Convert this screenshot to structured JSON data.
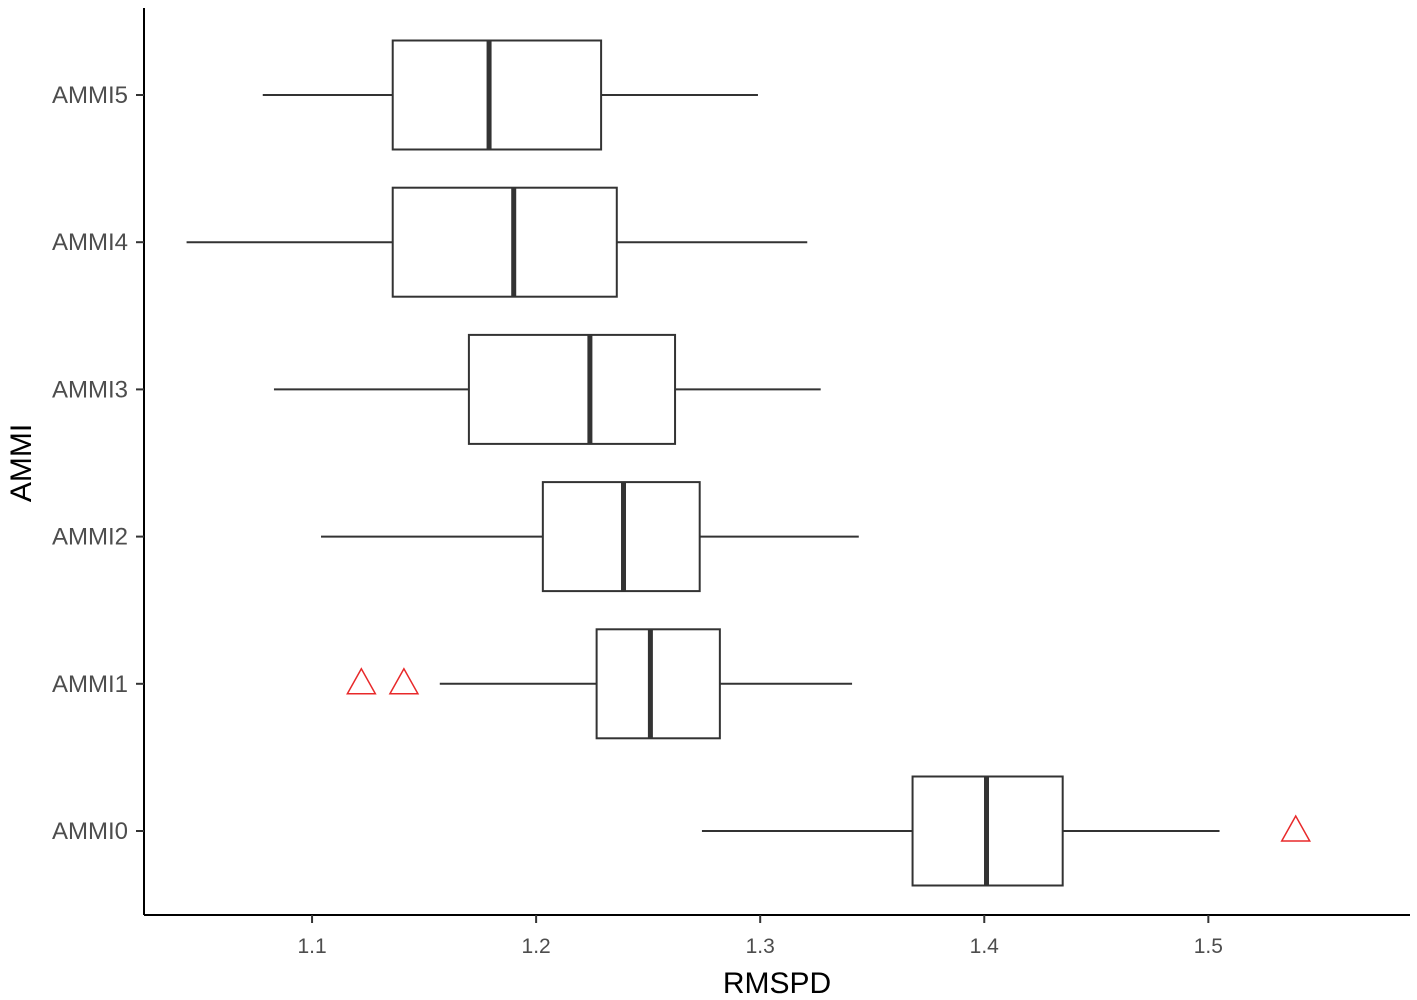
{
  "chart_data": {
    "type": "boxplot",
    "orientation": "horizontal",
    "title": "",
    "xlabel": "RMSPD",
    "ylabel": "AMMI",
    "xlim": [
      1.025,
      1.59
    ],
    "x_ticks": [
      1.1,
      1.2,
      1.3,
      1.4,
      1.5
    ],
    "x_tick_labels": [
      "1.1",
      "1.2",
      "1.3",
      "1.4",
      "1.5"
    ],
    "grid": false,
    "legend": "none",
    "outlier_color": "#e8292a",
    "outlier_shape": "open-triangle",
    "categories": [
      "AMMI5",
      "AMMI4",
      "AMMI3",
      "AMMI2",
      "AMMI1",
      "AMMI0"
    ],
    "boxes": [
      {
        "category": "AMMI5",
        "whisker_low": 1.078,
        "q1": 1.136,
        "median": 1.179,
        "q3": 1.229,
        "whisker_high": 1.299,
        "outliers": []
      },
      {
        "category": "AMMI4",
        "whisker_low": 1.044,
        "q1": 1.136,
        "median": 1.19,
        "q3": 1.236,
        "whisker_high": 1.321,
        "outliers": []
      },
      {
        "category": "AMMI3",
        "whisker_low": 1.083,
        "q1": 1.17,
        "median": 1.224,
        "q3": 1.262,
        "whisker_high": 1.327,
        "outliers": []
      },
      {
        "category": "AMMI2",
        "whisker_low": 1.104,
        "q1": 1.203,
        "median": 1.239,
        "q3": 1.273,
        "whisker_high": 1.344,
        "outliers": []
      },
      {
        "category": "AMMI1",
        "whisker_low": 1.157,
        "q1": 1.227,
        "median": 1.251,
        "q3": 1.282,
        "whisker_high": 1.341,
        "outliers": [
          1.122,
          1.141
        ]
      },
      {
        "category": "AMMI0",
        "whisker_low": 1.274,
        "q1": 1.368,
        "median": 1.401,
        "q3": 1.435,
        "whisker_high": 1.505,
        "outliers": [
          1.539
        ]
      }
    ]
  }
}
